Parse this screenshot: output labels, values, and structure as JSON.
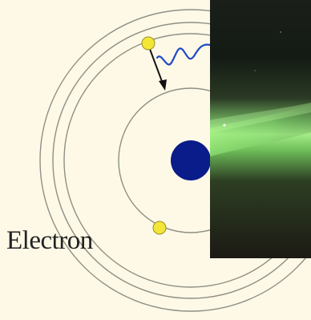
{
  "labels": {
    "electron": "Electron"
  },
  "colors": {
    "background": "#fdf9e6",
    "orbit": "#8f8f86",
    "nucleus": "#0a1b8a",
    "electron": "#f3e636",
    "photon_wave": "#1f49c8",
    "arrow": "#111111",
    "photo_sky_dark": "#141a14",
    "photo_aurora": "#8fe07a"
  },
  "icons": {
    "nucleus": "filled-circle",
    "electron": "filled-circle",
    "photon": "wavy-line",
    "transition": "arrow"
  }
}
